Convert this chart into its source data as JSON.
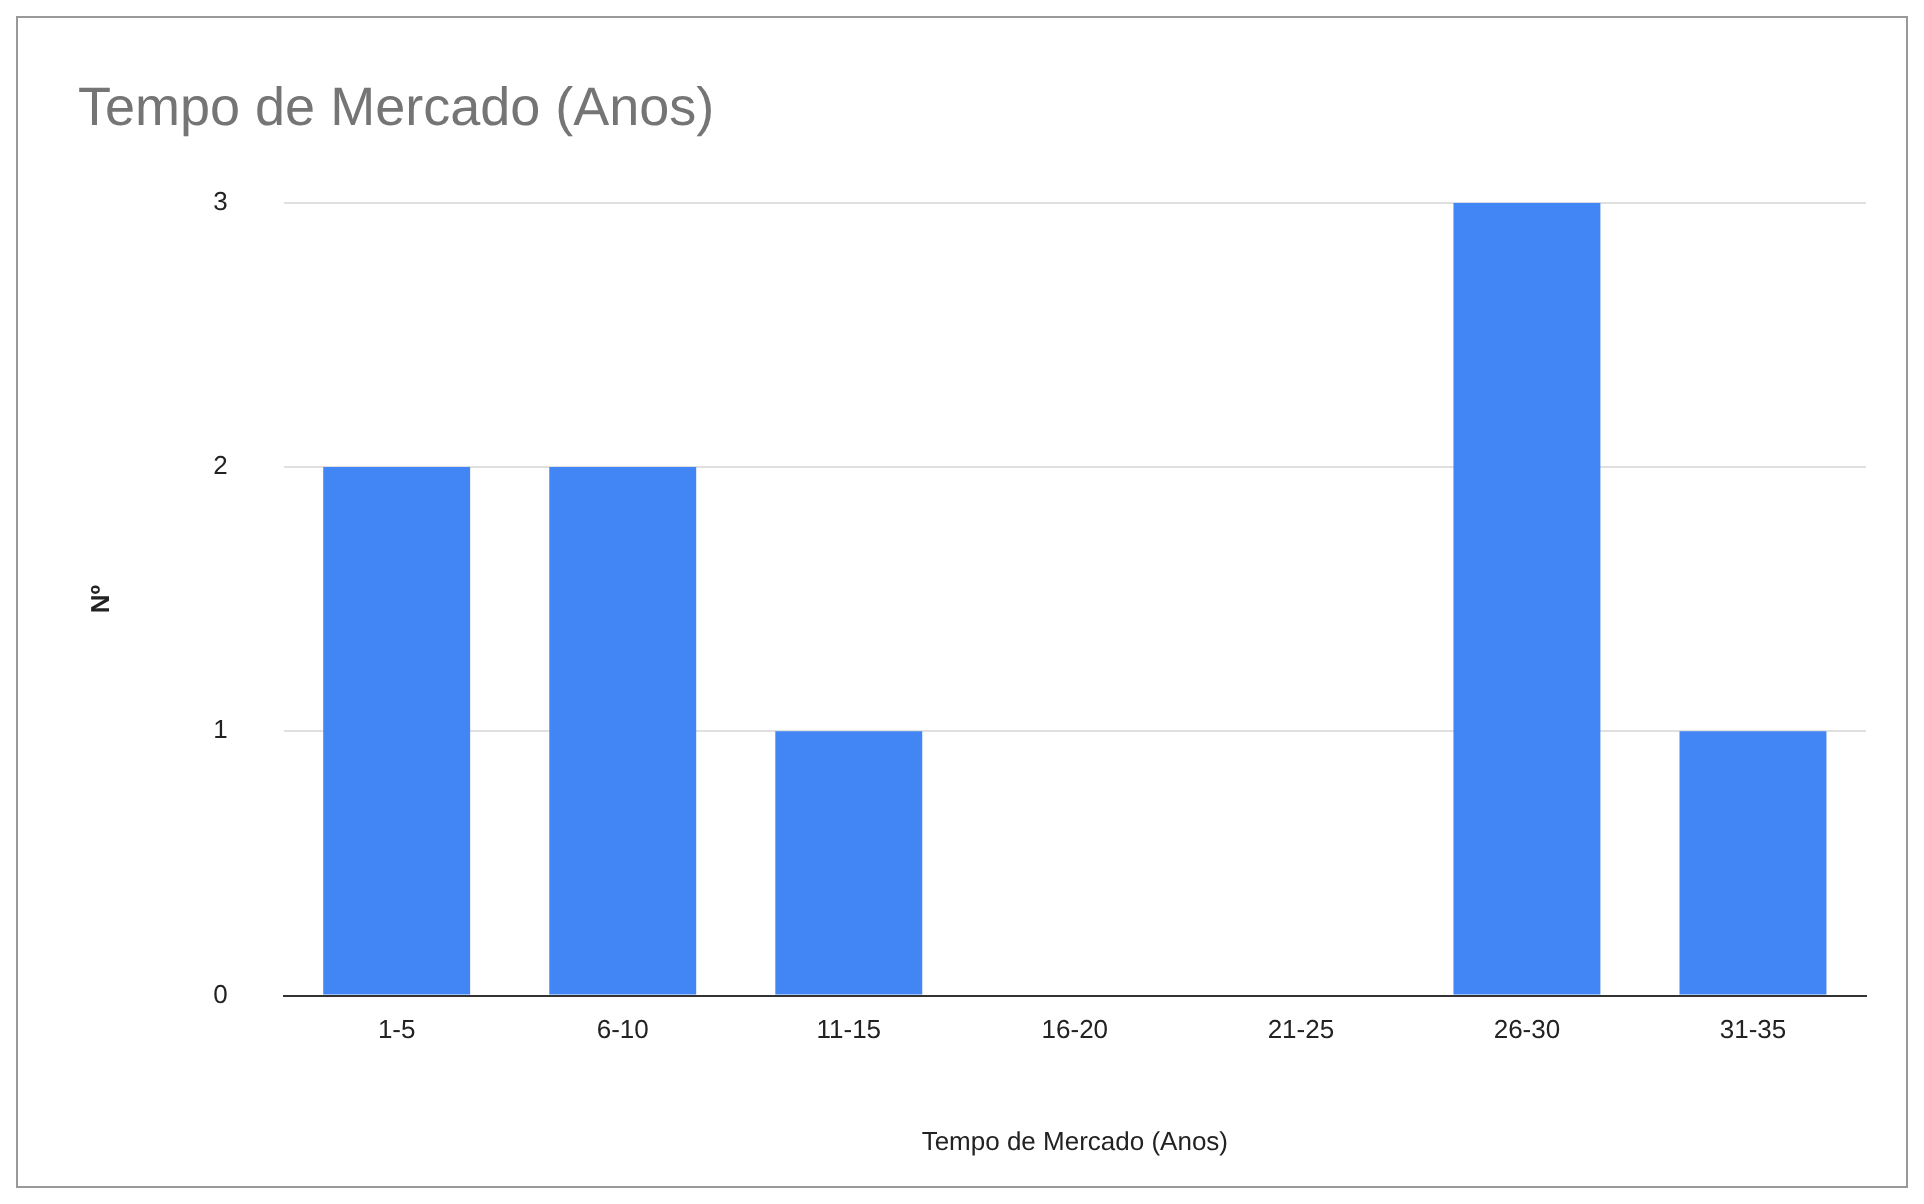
{
  "chart_data": {
    "type": "bar",
    "title": "Tempo de Mercado (Anos)",
    "xlabel": "Tempo de Mercado (Anos)",
    "ylabel": "Nº",
    "categories": [
      "1-5",
      "6-10",
      "11-15",
      "16-20",
      "21-25",
      "26-30",
      "31-35"
    ],
    "values": [
      2,
      2,
      1,
      0,
      0,
      3,
      1
    ],
    "color": "#4285f4",
    "ylim": [
      0,
      3
    ],
    "yticks": [
      0,
      1,
      2,
      3
    ],
    "grid": "y",
    "legend": false
  }
}
